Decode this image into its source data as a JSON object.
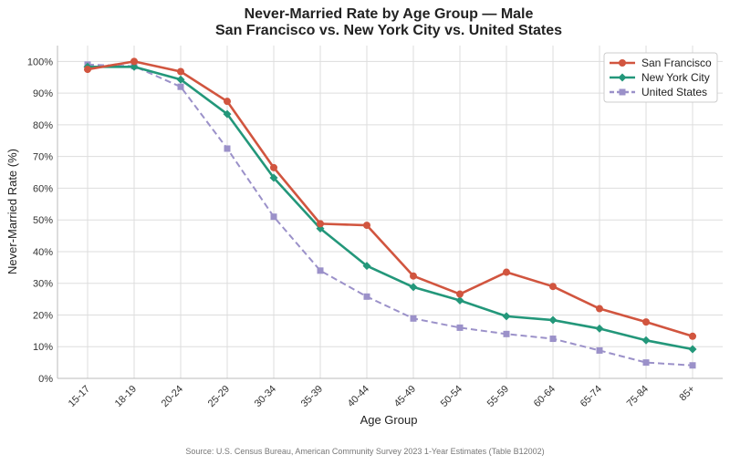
{
  "chart_data": {
    "type": "line",
    "title": "Never-Married Rate by Age Group — Male",
    "subtitle": "San Francisco vs. New York City vs. United States",
    "xlabel": "Age Group",
    "ylabel": "Never-Married Rate (%)",
    "ylim": [
      0,
      105
    ],
    "yticks": [
      "0%",
      "10%",
      "20%",
      "30%",
      "40%",
      "50%",
      "60%",
      "70%",
      "80%",
      "90%",
      "100%"
    ],
    "grid": true,
    "legend_position": "top-right",
    "categories": [
      "15-17",
      "18-19",
      "20-24",
      "25-29",
      "30-34",
      "35-39",
      "40-44",
      "45-49",
      "50-54",
      "55-59",
      "60-64",
      "65-74",
      "75-84",
      "85+"
    ],
    "series": [
      {
        "name": "San Francisco",
        "color": "#d1553f",
        "marker": "circle",
        "dash": "solid",
        "values": [
          97.5,
          100,
          96.8,
          87.4,
          66.5,
          48.8,
          48.3,
          32.3,
          26.6,
          33.5,
          29.0,
          22.0,
          17.8,
          13.3
        ]
      },
      {
        "name": "New York City",
        "color": "#23977a",
        "marker": "diamond",
        "dash": "solid",
        "values": [
          98.3,
          98.3,
          94.3,
          83.4,
          63.3,
          47.3,
          35.5,
          28.8,
          24.6,
          19.6,
          18.4,
          15.7,
          12.0,
          9.2
        ]
      },
      {
        "name": "United States",
        "color": "#9b91c9",
        "marker": "square",
        "dash": "dashed",
        "values": [
          99.0,
          98.5,
          92.0,
          72.5,
          51.0,
          34.0,
          25.8,
          18.9,
          16.0,
          14.0,
          12.5,
          8.8,
          5.0,
          4.1
        ]
      }
    ],
    "source": "Source: U.S. Census Bureau, American Community Survey 2023 1-Year Estimates (Table B12002)"
  }
}
